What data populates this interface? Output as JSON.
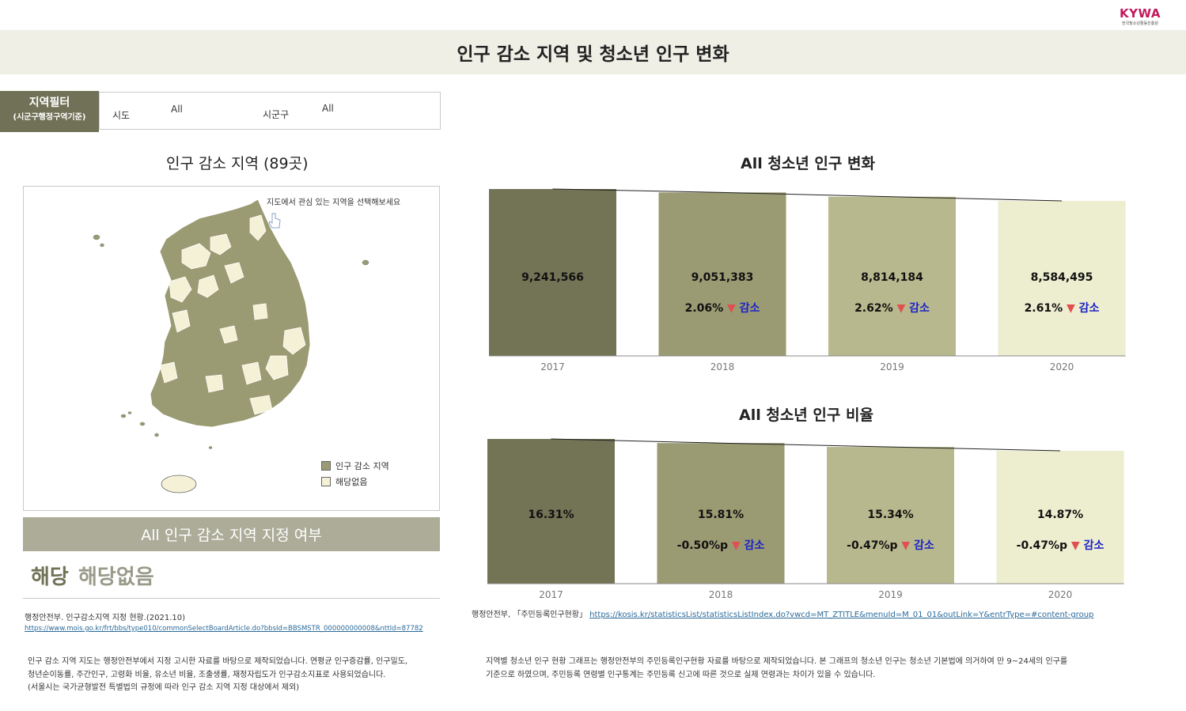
{
  "logo": {
    "main": "KYWA",
    "sub": "한국청소년활동진흥원"
  },
  "page_title": "인구 감소 지역 및 청소년 인구 변화",
  "filter": {
    "label_main": "지역필터",
    "label_sub": "(시군구행정구역기준)",
    "sido_label": "시도",
    "sido_value": "All",
    "sigungu_label": "시군구",
    "sigungu_value": "All"
  },
  "map_section": {
    "title": "인구 감소 지역 (89곳)",
    "hint": "지도에서 관심 있는 지역을 선택해보세요",
    "legend": [
      {
        "label": "인구 감소 지역",
        "color": "#9a9a73"
      },
      {
        "label": "해당없음",
        "color": "#f4f1d6"
      }
    ]
  },
  "status": {
    "header": "All 인구 감소 지역 지정 여부",
    "yes": "해당",
    "no": "해당없음"
  },
  "left_source": {
    "text": "행정안전부. 인구감소지역 지정 현황.(2021.10)",
    "link": "https://www.mois.go.kr/frt/bbs/type010/commonSelectBoardArticle.do?bbsId=BBSMSTR_000000000008&nttId=87782"
  },
  "left_note": [
    "인구 감소 지역 지도는 행정안전부에서 지정 고시한 자료를 바탕으로 제작되었습니다. 연평균 인구증감률, 인구밀도,",
    "청년순이동률, 주간인구, 고령화 비율, 유소년 비율, 조출생률, 재정자립도가 인구감소지표로 사용되었습니다.",
    "(서울시는 국가균형발전 특별법의 규정에 따라 인구 감소 지역 지정 대상에서 제외)"
  ],
  "right_source": {
    "text": "행정안전부, 「주민등록인구현황」",
    "link": "https://kosis.kr/statisticsList/statisticsListIndex.do?vwcd=MT_ZTITLE&menuId=M_01_01&outLink=Y&entrType=#content-group"
  },
  "right_note": [
    "지역별 청소년 인구 현황 그래프는 행정안전부의 주민등록인구현황 자료를 바탕으로 제작되었습니다. 본 그래프의 청소년 인구는 청소년 기본법에 의거하여 만 9~24세의 인구를",
    "기준으로 하였으며, 주민등록 연령별 인구통계는 주민등록 신고에 따른 것으로 실제 연령과는 차이가 있을 수 있습니다."
  ],
  "colors": {
    "bar_fills": [
      "#737356",
      "#9a9a73",
      "#b8b88e",
      "#ededcf"
    ],
    "down_arrow": "#e05050",
    "decrease_text": "#1c22c8"
  },
  "chart_data": [
    {
      "type": "bar",
      "title": "All 청소년 인구 변화",
      "categories": [
        "2017",
        "2018",
        "2019",
        "2020"
      ],
      "values": [
        9241566,
        9051383,
        8814184,
        8584495
      ],
      "value_labels": [
        "9,241,566",
        "9,051,383",
        "8,814,184",
        "8,584,495"
      ],
      "change_labels": [
        "",
        "2.06%",
        "2.62%",
        "2.61%"
      ],
      "change_word": "감소",
      "ylim": [
        0,
        9241566
      ]
    },
    {
      "type": "bar",
      "title": "All 청소년 인구 비율",
      "categories": [
        "2017",
        "2018",
        "2019",
        "2020"
      ],
      "values": [
        16.31,
        15.81,
        15.34,
        14.87
      ],
      "value_labels": [
        "16.31%",
        "15.81%",
        "15.34%",
        "14.87%"
      ],
      "change_labels": [
        "",
        "-0.50%p",
        "-0.47%p",
        "-0.47%p"
      ],
      "change_word": "감소",
      "ylim": [
        0,
        16.31
      ]
    }
  ]
}
